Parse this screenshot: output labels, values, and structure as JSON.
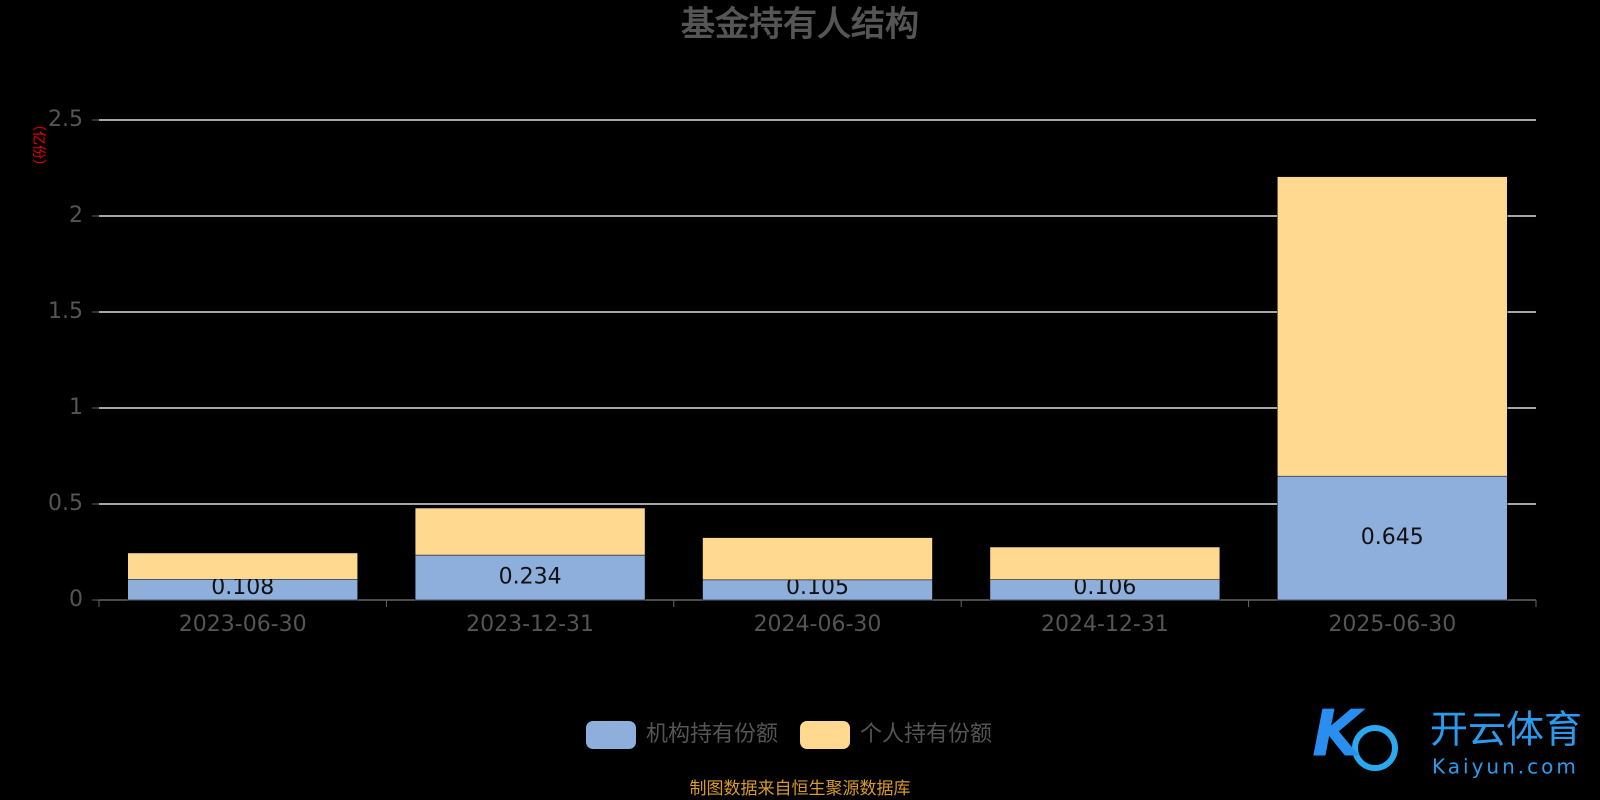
{
  "chart_data": {
    "type": "stacked-bar",
    "title": "基金持有人结构",
    "y_unit": "（亿份）",
    "categories": [
      "2023-06-30",
      "2023-12-31",
      "2024-06-30",
      "2024-12-31",
      "2025-06-30"
    ],
    "series": [
      {
        "name": "机构持有份额",
        "color": "#8eaedc",
        "values": [
          0.108,
          0.234,
          0.105,
          0.106,
          0.645
        ]
      },
      {
        "name": "个人持有份额",
        "color": "#ffd990",
        "values": [
          0.137,
          0.245,
          0.22,
          0.17,
          1.56
        ]
      }
    ],
    "labeled_series": [
      0
    ],
    "ylim": [
      0,
      2.5
    ],
    "yticks": [
      0,
      0.5,
      1,
      1.5,
      2,
      2.5
    ],
    "grid": true,
    "source": "制图数据来自恒生聚源数据库",
    "watermark": {
      "brand": "开云体育",
      "site": "Kaiyun.com"
    }
  }
}
